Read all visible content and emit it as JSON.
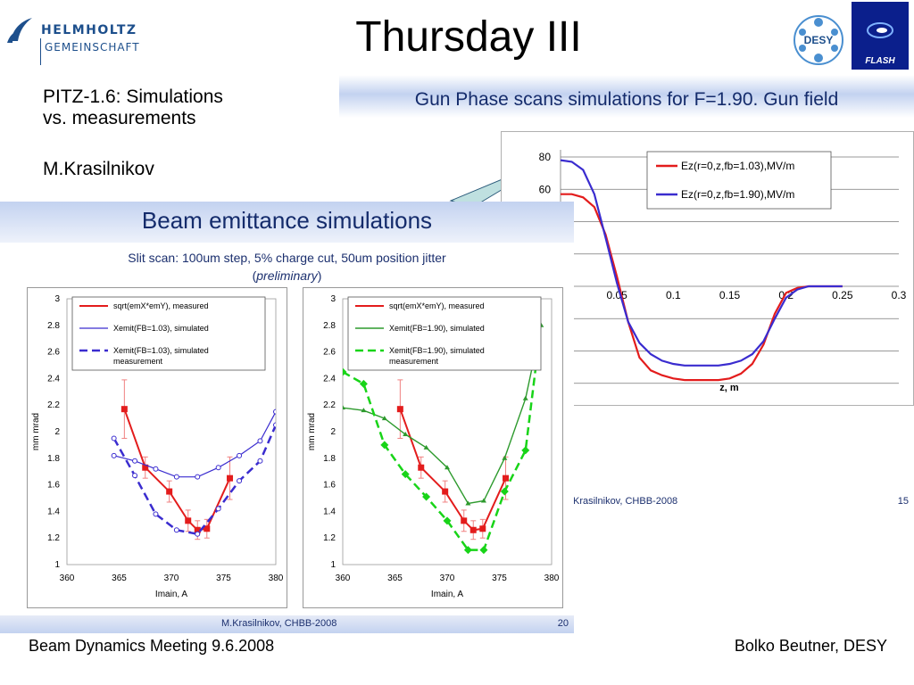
{
  "header": {
    "helmholtz_line1": "HELMHOLTZ",
    "helmholtz_line2": "GEMEINSCHAFT",
    "title": "Thursday III",
    "desy_label": "DESY",
    "flash_label": "FLASH"
  },
  "side": {
    "line1": "PITZ-1.6: Simulations",
    "line2": "vs. measurements",
    "author": "M.Krasilnikov"
  },
  "right_slide": {
    "title": "Gun Phase scans simulations for F=1.90. Gun field",
    "footer_author": "Krasilnikov, CHBB-2008",
    "footer_page": "15"
  },
  "left_slide": {
    "title": "Beam emittance simulations",
    "subtitle": "Slit scan: 100um step, 5% charge cut, 50um position jitter",
    "subtitle_prefix": "(",
    "subtitle_italic": "preliminary",
    "subtitle_suffix": ")",
    "footer_author": "M.Krasilnikov, CHBB-2008",
    "footer_page": "20"
  },
  "footer": {
    "left": "Beam Dynamics Meeting 9.6.2008",
    "right": "Bolko Beutner, DESY"
  },
  "colors": {
    "title_blue": "#142b6b",
    "red": "#e31c1c",
    "blue": "#3a2ccf",
    "green": "#2d9a2d",
    "bright_green": "#18d418"
  },
  "chart_data": [
    {
      "type": "line",
      "xlabel": "z, m",
      "ylabel": "",
      "x_ticks": [
        "0.05",
        "0.1",
        "0.15",
        "0.2",
        "0.25",
        "0.3"
      ],
      "y_ticks": [
        "80",
        "60"
      ],
      "series": [
        {
          "name": "Ez(r=0,z,fb=1.03),MV/m",
          "color": "#e31c1c",
          "x": [
            0.0,
            0.01,
            0.02,
            0.03,
            0.04,
            0.05,
            0.06,
            0.07,
            0.08,
            0.09,
            0.1,
            0.11,
            0.12,
            0.13,
            0.14,
            0.15,
            0.16,
            0.17,
            0.18,
            0.19,
            0.2,
            0.21,
            0.22,
            0.23,
            0.24,
            0.25
          ],
          "y": [
            57,
            57,
            55,
            49,
            32,
            6,
            -22,
            -44,
            -52,
            -55,
            -57,
            -58,
            -58,
            -58,
            -58,
            -57,
            -54,
            -48,
            -36,
            -17,
            -4,
            -1,
            0,
            0,
            0,
            0
          ]
        },
        {
          "name": "Ez(r=0,z,fb=1.90),MV/m",
          "color": "#3a2ccf",
          "x": [
            0.0,
            0.01,
            0.02,
            0.03,
            0.04,
            0.05,
            0.06,
            0.07,
            0.08,
            0.09,
            0.1,
            0.11,
            0.12,
            0.13,
            0.14,
            0.15,
            0.16,
            0.17,
            0.18,
            0.19,
            0.2,
            0.21,
            0.22,
            0.23,
            0.24,
            0.25
          ],
          "y": [
            78,
            77,
            72,
            57,
            30,
            2,
            -22,
            -35,
            -42,
            -46,
            -48,
            -49,
            -49,
            -49,
            -49,
            -48,
            -46,
            -42,
            -34,
            -20,
            -7,
            -2,
            0,
            0,
            0,
            0
          ]
        }
      ]
    },
    {
      "type": "line",
      "xlabel": "Imain, A",
      "ylabel": "mm mrad",
      "xlim": [
        360,
        380
      ],
      "ylim": [
        1,
        3
      ],
      "x_ticks": [
        "360",
        "365",
        "370",
        "375",
        "380"
      ],
      "y_ticks": [
        "1",
        "1.2",
        "1.4",
        "1.6",
        "1.8",
        "2",
        "2.2",
        "2.4",
        "2.6",
        "2.8",
        "3"
      ],
      "series": [
        {
          "name": "sqrt(emX*emY), measured",
          "color": "#e31c1c",
          "x": [
            365.5,
            367.5,
            369.8,
            371.6,
            372.5,
            373.4,
            375.6
          ],
          "y": [
            2.17,
            1.73,
            1.55,
            1.33,
            1.26,
            1.27,
            1.65
          ],
          "err": [
            0.22,
            0.08,
            0.08,
            0.08,
            0.07,
            0.07,
            0.16
          ]
        },
        {
          "name": "Xemit(FB=1.03), simulated",
          "color": "#3a2ccf",
          "x": [
            364.5,
            366.5,
            368.5,
            370.5,
            372.5,
            374.5,
            376.5,
            378.5,
            380
          ],
          "y": [
            1.82,
            1.78,
            1.72,
            1.66,
            1.66,
            1.73,
            1.82,
            1.93,
            2.15
          ]
        },
        {
          "name": "Xemit(FB=1.03), simulated measurement",
          "color": "#3a2ccf",
          "x": [
            364.5,
            366.5,
            368.5,
            370.5,
            372.5,
            374.5,
            376.5,
            378.5,
            380
          ],
          "y": [
            1.95,
            1.67,
            1.38,
            1.26,
            1.23,
            1.42,
            1.63,
            1.78,
            2.05
          ]
        }
      ]
    },
    {
      "type": "line",
      "xlabel": "Imain, A",
      "ylabel": "mm mrad",
      "xlim": [
        360,
        380
      ],
      "ylim": [
        1,
        3
      ],
      "x_ticks": [
        "360",
        "365",
        "370",
        "375",
        "380"
      ],
      "y_ticks": [
        "1",
        "1.2",
        "1.4",
        "1.6",
        "1.8",
        "2",
        "2.2",
        "2.4",
        "2.6",
        "2.8",
        "3"
      ],
      "series": [
        {
          "name": "sqrt(emX*emY), measured",
          "color": "#e31c1c",
          "x": [
            365.5,
            367.5,
            369.8,
            371.6,
            372.5,
            373.4,
            375.6
          ],
          "y": [
            2.17,
            1.73,
            1.55,
            1.33,
            1.26,
            1.27,
            1.65
          ],
          "err": [
            0.22,
            0.08,
            0.08,
            0.08,
            0.07,
            0.07,
            0.16
          ]
        },
        {
          "name": "Xemit(FB=1.90), simulated",
          "color": "#2d9a2d",
          "x": [
            360,
            362,
            364,
            366,
            368,
            370,
            372,
            373.5,
            375.5,
            377.5,
            379
          ],
          "y": [
            2.18,
            2.16,
            2.1,
            1.98,
            1.88,
            1.73,
            1.46,
            1.48,
            1.8,
            2.25,
            2.8
          ]
        },
        {
          "name": "Xemit(FB=1.90), simulated measurement",
          "color": "#18d418",
          "x": [
            360,
            362,
            364,
            366,
            368,
            370,
            372,
            373.5,
            375.5,
            377.5,
            378.5
          ],
          "y": [
            2.45,
            2.36,
            1.9,
            1.68,
            1.51,
            1.33,
            1.11,
            1.11,
            1.55,
            1.86,
            2.5
          ]
        }
      ]
    }
  ]
}
